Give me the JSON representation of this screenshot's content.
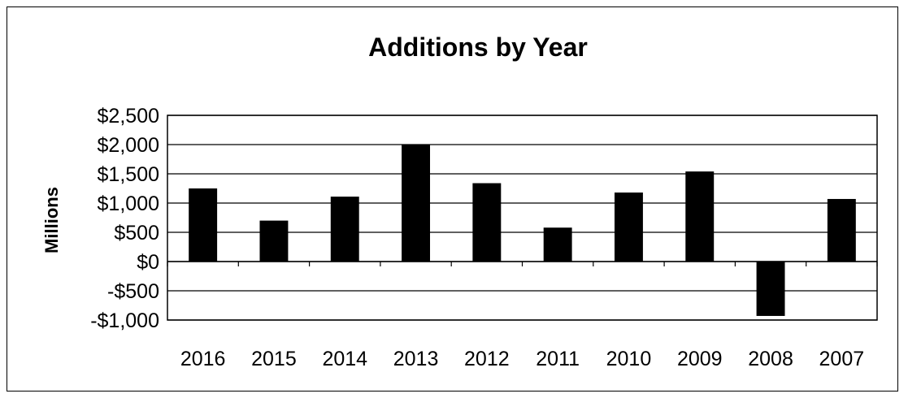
{
  "chart_data": {
    "type": "bar",
    "title": "Additions by Year",
    "xlabel": "",
    "ylabel": "Millions",
    "categories": [
      "2016",
      "2015",
      "2014",
      "2013",
      "2012",
      "2011",
      "2010",
      "2009",
      "2008",
      "2007"
    ],
    "values": [
      1250,
      700,
      1110,
      2000,
      1340,
      580,
      1180,
      1540,
      -930,
      1070
    ],
    "ylim": [
      -1000,
      2500
    ],
    "yticks": [
      2500,
      2000,
      1500,
      1000,
      500,
      0,
      -500,
      -1000
    ],
    "ytick_labels": [
      "$2,500",
      "$2,000",
      "$1,500",
      "$1,000",
      "$500",
      "$0",
      "-$500",
      "-$1,000"
    ],
    "grid": true,
    "legend": "none",
    "bar_color": "#000000"
  }
}
